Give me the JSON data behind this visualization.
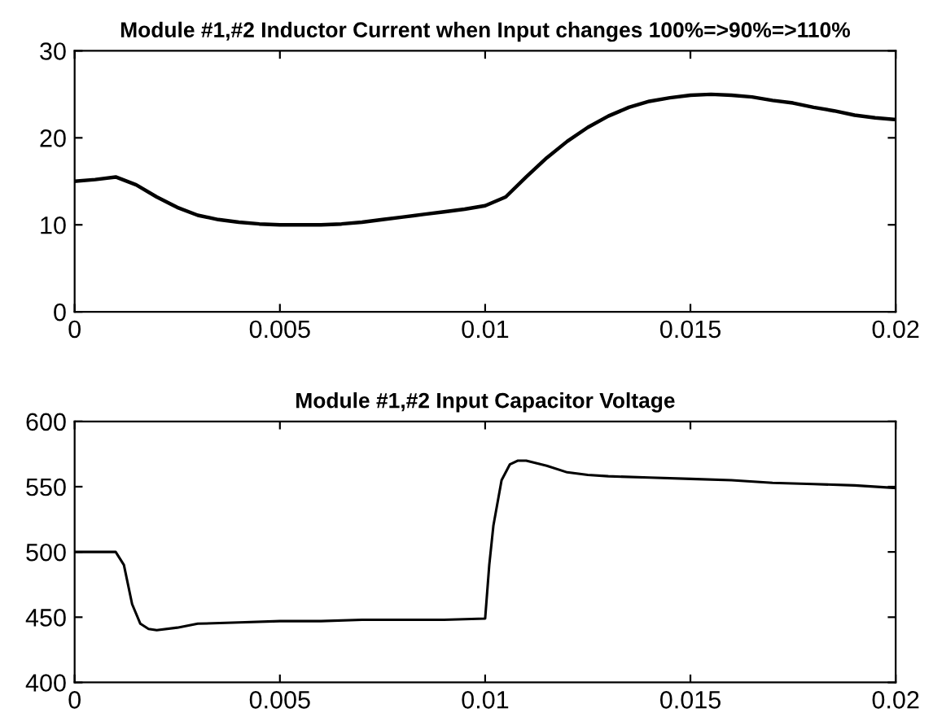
{
  "chart_data": [
    {
      "type": "line",
      "title": "Module #1,#2 Inductor Current when Input changes 100%=>90%=>110%",
      "xlim": [
        0,
        0.02
      ],
      "xticks": [
        0,
        0.005,
        0.01,
        0.015,
        0.02
      ],
      "ylim": [
        0,
        30
      ],
      "yticks": [
        0,
        10,
        20,
        30
      ],
      "grid": false,
      "series": [
        {
          "color": "#000000",
          "x": [
            0,
            0.0005,
            0.001,
            0.0015,
            0.002,
            0.0025,
            0.003,
            0.0035,
            0.004,
            0.0045,
            0.005,
            0.0055,
            0.006,
            0.0065,
            0.007,
            0.0075,
            0.008,
            0.0085,
            0.009,
            0.0095,
            0.01,
            0.0105,
            0.011,
            0.0115,
            0.012,
            0.0125,
            0.013,
            0.0135,
            0.014,
            0.0145,
            0.015,
            0.0155,
            0.016,
            0.0165,
            0.017,
            0.0175,
            0.018,
            0.0185,
            0.019,
            0.0195,
            0.02
          ],
          "values": [
            15,
            15.2,
            15.5,
            14.6,
            13.2,
            12,
            11.1,
            10.6,
            10.3,
            10.1,
            10,
            10,
            10,
            10.1,
            10.3,
            10.6,
            10.9,
            11.2,
            11.5,
            11.8,
            12.2,
            13.2,
            15.5,
            17.7,
            19.6,
            21.2,
            22.5,
            23.5,
            24.2,
            24.6,
            24.9,
            25,
            24.9,
            24.7,
            24.3,
            24,
            23.5,
            23.1,
            22.6,
            22.3,
            22.1
          ]
        }
      ]
    },
    {
      "type": "line",
      "title": "Module #1,#2 Input Capacitor Voltage",
      "xlim": [
        0,
        0.02
      ],
      "xticks": [
        0,
        0.005,
        0.01,
        0.015,
        0.02
      ],
      "ylim": [
        400,
        600
      ],
      "yticks": [
        400,
        450,
        500,
        550,
        600
      ],
      "grid": false,
      "series": [
        {
          "color": "#000000",
          "x": [
            0,
            0.001,
            0.0012,
            0.0014,
            0.0016,
            0.0018,
            0.002,
            0.0025,
            0.003,
            0.004,
            0.005,
            0.006,
            0.007,
            0.008,
            0.009,
            0.01,
            0.0101,
            0.0102,
            0.0104,
            0.0106,
            0.0108,
            0.011,
            0.0115,
            0.012,
            0.0125,
            0.013,
            0.014,
            0.015,
            0.016,
            0.017,
            0.018,
            0.019,
            0.02
          ],
          "values": [
            500,
            500,
            490,
            460,
            445,
            441,
            440,
            442,
            445,
            446,
            447,
            447,
            448,
            448,
            448,
            449,
            490,
            520,
            555,
            567,
            570,
            570,
            566,
            561,
            559,
            558,
            557,
            556,
            555,
            553,
            552,
            551,
            549
          ]
        }
      ]
    }
  ]
}
